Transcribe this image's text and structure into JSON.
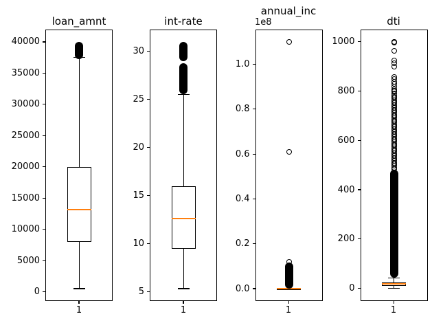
{
  "figure": {
    "background": "#ffffff",
    "box_edge_color": "#000000",
    "median_color": "#ff7f0e",
    "flier_color": "#000000"
  },
  "chart_data": {
    "type": "boxplot",
    "title": "",
    "layout": "1x4 vertical box plots",
    "plots": [
      {
        "title": "loan_amnt",
        "xtick": "1",
        "ylim": [
          -1475,
          41975
        ],
        "yticks": [
          {
            "v": 0,
            "label": "0"
          },
          {
            "v": 5000,
            "label": "5000"
          },
          {
            "v": 10000,
            "label": "10000"
          },
          {
            "v": 15000,
            "label": "15000"
          },
          {
            "v": 20000,
            "label": "20000"
          },
          {
            "v": 25000,
            "label": "25000"
          },
          {
            "v": 30000,
            "label": "30000"
          },
          {
            "v": 35000,
            "label": "35000"
          },
          {
            "v": 40000,
            "label": "40000"
          }
        ],
        "stats": {
          "whislo": 500,
          "q1": 8000,
          "med": 13200,
          "q3": 20000,
          "whishi": 37500
        },
        "dense_outliers": [
          [
            37250,
            40000
          ]
        ],
        "outliers": []
      },
      {
        "title": "int-rate",
        "xtick": "1",
        "ylim": [
          4.03,
          32.27
        ],
        "yticks": [
          {
            "v": 5,
            "label": "5"
          },
          {
            "v": 10,
            "label": "10"
          },
          {
            "v": 15,
            "label": "15"
          },
          {
            "v": 20,
            "label": "20"
          },
          {
            "v": 25,
            "label": "25"
          },
          {
            "v": 30,
            "label": "30"
          }
        ],
        "stats": {
          "whislo": 5.31,
          "q1": 9.49,
          "med": 12.62,
          "q3": 15.99,
          "whishi": 25.5
        },
        "dense_outliers": [
          [
            25.55,
            28.8
          ],
          [
            29.0,
            30.99
          ]
        ],
        "outliers": []
      },
      {
        "title": "annual_inc",
        "offset_text": "1e8",
        "xtick": "1",
        "ylim": [
          -5500000,
          115500000
        ],
        "yticks": [
          {
            "v": 0,
            "label": "0.0"
          },
          {
            "v": 20000000,
            "label": "0.2"
          },
          {
            "v": 40000000,
            "label": "0.4"
          },
          {
            "v": 60000000,
            "label": "0.6"
          },
          {
            "v": 80000000,
            "label": "0.8"
          },
          {
            "v": 100000000,
            "label": "1.0"
          }
        ],
        "stats": {
          "whislo": 0,
          "q1": 45000,
          "med": 65000,
          "q3": 90000,
          "whishi": 157000
        },
        "dense_outliers": [
          [
            160000,
            11700000
          ]
        ],
        "outliers": [
          11900000,
          61000000,
          110000000
        ]
      },
      {
        "title": "dti",
        "xtick": "1",
        "ylim": [
          -51,
          1049
        ],
        "yticks": [
          {
            "v": 0,
            "label": "0"
          },
          {
            "v": 200,
            "label": "200"
          },
          {
            "v": 400,
            "label": "400"
          },
          {
            "v": 600,
            "label": "600"
          },
          {
            "v": 800,
            "label": "800"
          },
          {
            "v": 1000,
            "label": "1000"
          }
        ],
        "stats": {
          "whislo": 0,
          "q1": 11.3,
          "med": 17.6,
          "q3": 24.2,
          "whishi": 43
        },
        "dense_outliers": [
          [
            45,
            480
          ]
        ],
        "outliers": [
          484,
          490,
          497,
          503,
          510,
          516,
          523,
          529,
          536,
          542,
          549,
          555,
          562,
          568,
          575,
          581,
          588,
          594,
          601,
          607,
          614,
          620,
          627,
          633,
          640,
          646,
          653,
          659,
          666,
          672,
          679,
          685,
          692,
          698,
          705,
          711,
          718,
          724,
          731,
          737,
          744,
          750,
          757,
          763,
          770,
          776,
          782,
          790,
          799,
          801,
          808,
          818,
          828,
          838,
          848,
          858,
          900,
          912,
          925,
          962,
          997,
          998.5,
          1000
        ]
      }
    ]
  }
}
